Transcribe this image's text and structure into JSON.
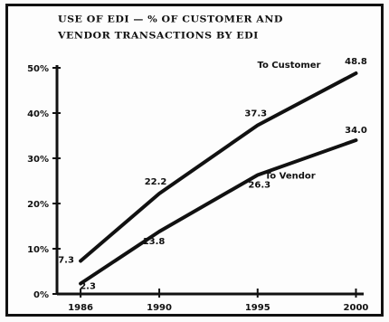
{
  "chart_data": {
    "type": "line",
    "title_lines": [
      "USE OF EDI — % OF CUSTOMER AND",
      "VENDOR TRANSACTIONS BY EDI"
    ],
    "xlabel": "",
    "ylabel": "",
    "x": [
      1986,
      1990,
      1995,
      2000
    ],
    "xlim": [
      1984.8,
      2000.3
    ],
    "ylim": [
      0,
      50
    ],
    "y_ticks": [
      0,
      10,
      20,
      30,
      40,
      50
    ],
    "y_tick_labels": [
      "0%",
      "10%",
      "20%",
      "30%",
      "40%",
      "50%"
    ],
    "x_tick_labels": [
      "1986",
      "1990",
      "1995",
      "2000"
    ],
    "grid": false,
    "series": [
      {
        "name": "To Customer",
        "values": [
          7.3,
          22.2,
          37.3,
          48.8
        ],
        "value_labels": [
          "7.3",
          "22.2",
          "37.3",
          "48.8"
        ],
        "color": "#111111"
      },
      {
        "name": "To Vendor",
        "values": [
          2.3,
          13.8,
          26.3,
          34.0
        ],
        "value_labels": [
          "2.3",
          "13.8",
          "26.3",
          "34.0"
        ],
        "color": "#111111"
      }
    ]
  }
}
